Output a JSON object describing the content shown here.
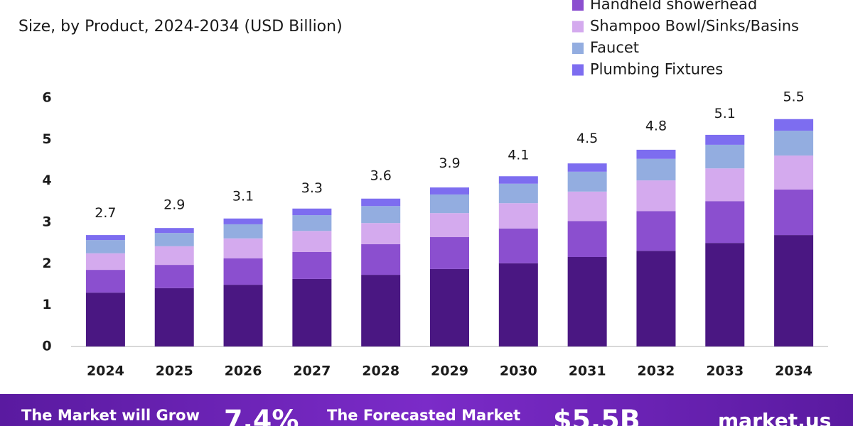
{
  "chart_data": {
    "type": "stacked_bar",
    "subtitle": "Size, by Product, 2024-2034 (USD Billion)",
    "categories": [
      "2024",
      "2025",
      "2026",
      "2027",
      "2028",
      "2029",
      "2030",
      "2031",
      "2032",
      "2033",
      "2034"
    ],
    "series": [
      {
        "color": "#4a1782",
        "values": [
          1.3,
          1.41,
          1.49,
          1.63,
          1.73,
          1.87,
          2.01,
          2.16,
          2.31,
          2.5,
          2.69
        ]
      },
      {
        "name": "Handheld showerhead",
        "color": "#8b4fcf",
        "values": [
          0.55,
          0.56,
          0.64,
          0.65,
          0.74,
          0.77,
          0.84,
          0.87,
          0.96,
          1.01,
          1.1
        ]
      },
      {
        "name": "Shampoo Bowl/Sinks/Basins",
        "color": "#d4aaee",
        "values": [
          0.4,
          0.45,
          0.48,
          0.51,
          0.51,
          0.58,
          0.61,
          0.71,
          0.74,
          0.79,
          0.82
        ]
      },
      {
        "name": "Faucet",
        "color": "#93ade0",
        "values": [
          0.32,
          0.32,
          0.34,
          0.38,
          0.41,
          0.45,
          0.47,
          0.48,
          0.52,
          0.57,
          0.6
        ]
      },
      {
        "name": "Plumbing Fixtures",
        "color": "#7d6df0",
        "values": [
          0.12,
          0.12,
          0.14,
          0.16,
          0.18,
          0.17,
          0.18,
          0.2,
          0.22,
          0.24,
          0.28
        ]
      }
    ],
    "totals": [
      2.7,
      2.9,
      3.1,
      3.3,
      3.6,
      3.9,
      4.1,
      4.5,
      4.8,
      5.1,
      5.5
    ],
    "ylim": [
      0,
      6
    ],
    "yticks": [
      0,
      1,
      2,
      3,
      4,
      5,
      6
    ],
    "grid": false
  },
  "footer": {
    "grow_text": "The Market will Grow",
    "cagr": "7.4%",
    "forecast_text": "The Forecasted Market",
    "forecast_value": "$5.5B",
    "brand": "market.us"
  }
}
